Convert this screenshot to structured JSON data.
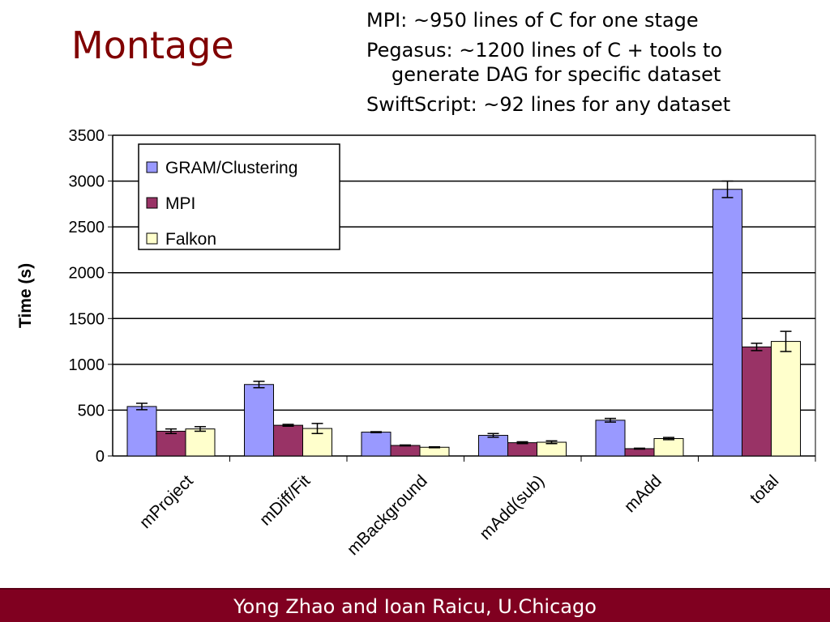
{
  "title": "Montage",
  "notes": [
    "MPI: ~950 lines of C for one stage",
    "Pegasus: ~1200 lines of C + tools to",
    "generate  DAG for specific dataset",
    "SwiftScript: ~92 lines for any dataset"
  ],
  "footer": "Yong Zhao and Ioan Raicu, U.Chicago",
  "chart_data": {
    "type": "bar",
    "ylabel": "Time (s)",
    "xlabel": "",
    "ylim": [
      0,
      3500
    ],
    "yticks": [
      "0",
      "500",
      "1000",
      "1500",
      "2000",
      "2500",
      "3000",
      "3500"
    ],
    "grid": true,
    "legend_position": "top-left",
    "categories": [
      "mProject",
      "mDiff/Fit",
      "mBackground",
      "mAdd(sub)",
      "mAdd",
      "total"
    ],
    "series": [
      {
        "name": "GRAM/Clustering",
        "color": "#9999ff",
        "values": [
          540,
          780,
          260,
          225,
          390,
          2910
        ],
        "errors": [
          35,
          35,
          5,
          20,
          20,
          90
        ]
      },
      {
        "name": "MPI",
        "color": "#993366",
        "values": [
          270,
          335,
          115,
          145,
          80,
          1190
        ],
        "errors": [
          25,
          10,
          5,
          10,
          5,
          40
        ]
      },
      {
        "name": "Falkon",
        "color": "#ffffcc",
        "values": [
          295,
          300,
          95,
          150,
          190,
          1250
        ],
        "errors": [
          25,
          55,
          5,
          15,
          12,
          110
        ]
      }
    ]
  }
}
